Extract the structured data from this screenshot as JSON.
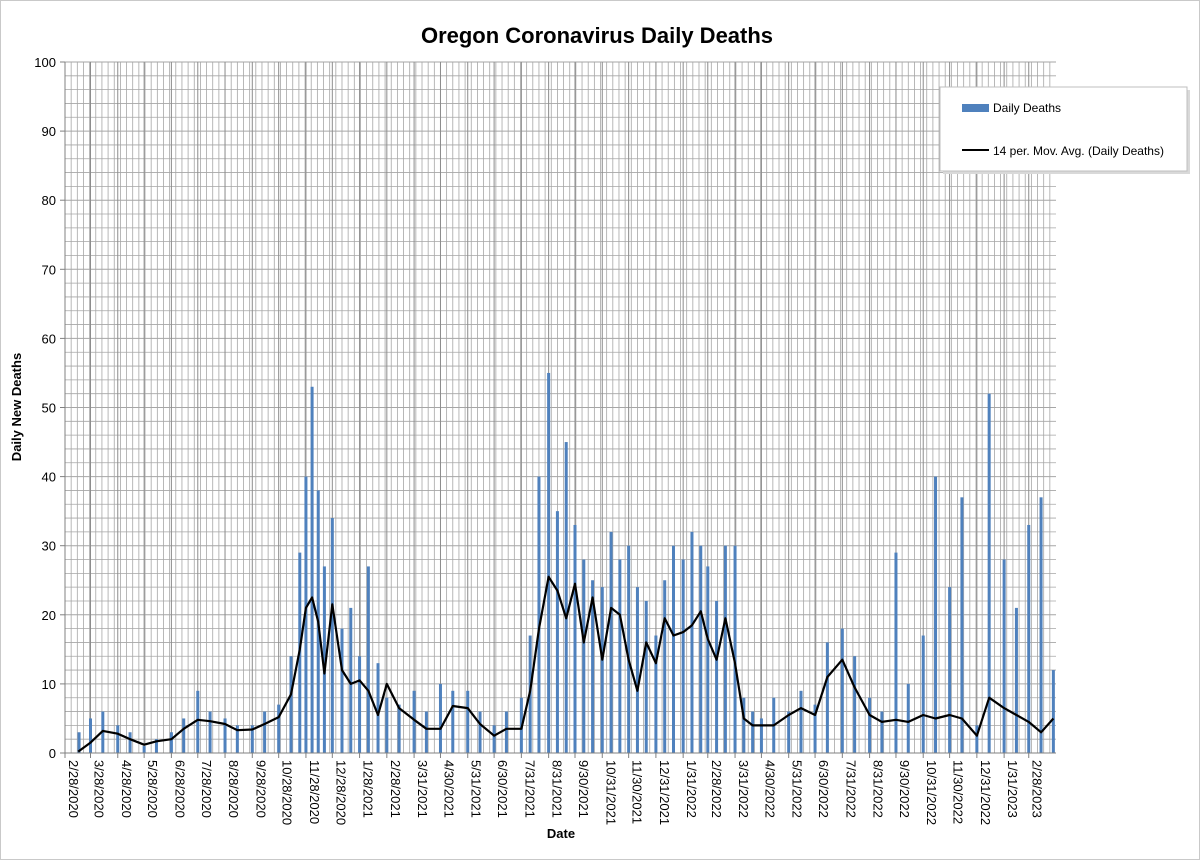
{
  "chart_data": {
    "type": "bar",
    "title": "Oregon Coronavirus Daily Deaths",
    "xlabel": "Date",
    "ylabel": "Daily New Deaths",
    "ylim": [
      0,
      100
    ],
    "yticks": [
      0,
      10,
      20,
      30,
      40,
      50,
      60,
      70,
      80,
      90,
      100
    ],
    "x_start": "2/28/2020",
    "x_end": "3/31/2023",
    "xtick_labels": [
      "2/28/2020",
      "3/28/2020",
      "4/28/2020",
      "5/28/2020",
      "6/28/2020",
      "7/28/2020",
      "8/28/2020",
      "9/28/2020",
      "10/28/2020",
      "11/28/2020",
      "12/28/2020",
      "1/28/2021",
      "2/28/2021",
      "3/31/2021",
      "4/30/2021",
      "5/31/2021",
      "6/30/2021",
      "7/31/2021",
      "8/31/2021",
      "9/30/2021",
      "10/31/2021",
      "11/30/2021",
      "12/31/2021",
      "1/31/2022",
      "2/28/2022",
      "3/31/2022",
      "4/30/2022",
      "5/31/2022",
      "6/30/2022",
      "7/31/2022",
      "8/31/2022",
      "9/30/2022",
      "10/31/2022",
      "11/30/2022",
      "12/31/2022",
      "1/31/2023",
      "2/28/2023"
    ],
    "grid": true,
    "legend_position": "top-right",
    "colors": {
      "bars": "#4f81bd",
      "moving_average": "#000000",
      "grid": "#a6a6a6"
    },
    "series": [
      {
        "name": "Daily Deaths",
        "type": "bar",
        "x": [
          "3/1/2020",
          "3/15/2020",
          "3/28/2020",
          "4/11/2020",
          "4/28/2020",
          "5/12/2020",
          "5/28/2020",
          "6/11/2020",
          "6/28/2020",
          "7/12/2020",
          "7/28/2020",
          "8/11/2020",
          "8/28/2020",
          "9/11/2020",
          "9/28/2020",
          "10/12/2020",
          "10/28/2020",
          "11/11/2020",
          "11/21/2020",
          "11/28/2020",
          "12/5/2020",
          "12/12/2020",
          "12/19/2020",
          "12/28/2020",
          "1/8/2021",
          "1/18/2021",
          "1/28/2021",
          "2/7/2021",
          "2/18/2021",
          "2/28/2021",
          "3/14/2021",
          "3/31/2021",
          "4/14/2021",
          "4/30/2021",
          "5/14/2021",
          "5/31/2021",
          "6/14/2021",
          "6/30/2021",
          "7/14/2021",
          "7/31/2021",
          "8/10/2021",
          "8/20/2021",
          "8/31/2021",
          "9/10/2021",
          "9/20/2021",
          "9/30/2021",
          "10/10/2021",
          "10/20/2021",
          "10/31/2021",
          "11/10/2021",
          "11/20/2021",
          "11/30/2021",
          "12/10/2021",
          "12/20/2021",
          "12/31/2021",
          "1/10/2022",
          "1/20/2022",
          "1/31/2022",
          "2/10/2022",
          "2/20/2022",
          "2/28/2022",
          "3/10/2022",
          "3/20/2022",
          "3/31/2022",
          "4/10/2022",
          "4/20/2022",
          "4/30/2022",
          "5/14/2022",
          "5/31/2022",
          "6/14/2022",
          "6/30/2022",
          "7/14/2022",
          "7/31/2022",
          "8/14/2022",
          "8/31/2022",
          "9/14/2022",
          "9/30/2022",
          "10/14/2022",
          "10/31/2022",
          "11/14/2022",
          "11/30/2022",
          "12/14/2022",
          "12/31/2022",
          "1/14/2023",
          "1/31/2023",
          "2/14/2023",
          "2/28/2023",
          "3/14/2023",
          "3/28/2023"
        ],
        "values": [
          0,
          3,
          5,
          6,
          4,
          3,
          1,
          2,
          3,
          5,
          9,
          6,
          5,
          4,
          4,
          6,
          7,
          14,
          29,
          40,
          53,
          38,
          27,
          34,
          18,
          21,
          14,
          27,
          13,
          8,
          7,
          9,
          6,
          10,
          9,
          9,
          6,
          4,
          6,
          8,
          17,
          40,
          55,
          35,
          45,
          33,
          28,
          25,
          24,
          32,
          28,
          30,
          24,
          22,
          17,
          25,
          30,
          28,
          32,
          30,
          27,
          22,
          30,
          30,
          8,
          6,
          5,
          8,
          6,
          9,
          7,
          16,
          18,
          14,
          8,
          6,
          29,
          10,
          17,
          40,
          24,
          37,
          4,
          52,
          28,
          21,
          33,
          37,
          12
        ]
      },
      {
        "name": "14 per. Mov. Avg. (Daily Deaths)",
        "type": "line",
        "x": [
          "3/14/2020",
          "3/28/2020",
          "4/11/2020",
          "4/28/2020",
          "5/12/2020",
          "5/28/2020",
          "6/11/2020",
          "6/28/2020",
          "7/12/2020",
          "7/28/2020",
          "8/11/2020",
          "8/28/2020",
          "9/11/2020",
          "9/28/2020",
          "10/12/2020",
          "10/28/2020",
          "11/11/2020",
          "11/21/2020",
          "11/28/2020",
          "12/5/2020",
          "12/12/2020",
          "12/19/2020",
          "12/28/2020",
          "1/8/2021",
          "1/18/2021",
          "1/28/2021",
          "2/7/2021",
          "2/18/2021",
          "2/28/2021",
          "3/14/2021",
          "3/31/2021",
          "4/14/2021",
          "4/30/2021",
          "5/14/2021",
          "5/31/2021",
          "6/14/2021",
          "6/30/2021",
          "7/14/2021",
          "7/31/2021",
          "8/10/2021",
          "8/20/2021",
          "8/31/2021",
          "9/10/2021",
          "9/20/2021",
          "9/30/2021",
          "10/10/2021",
          "10/20/2021",
          "10/31/2021",
          "11/10/2021",
          "11/20/2021",
          "11/30/2021",
          "12/10/2021",
          "12/20/2021",
          "12/31/2021",
          "1/10/2022",
          "1/20/2022",
          "1/31/2022",
          "2/10/2022",
          "2/20/2022",
          "2/28/2022",
          "3/10/2022",
          "3/20/2022",
          "3/31/2022",
          "4/10/2022",
          "4/20/2022",
          "4/30/2022",
          "5/14/2022",
          "5/31/2022",
          "6/14/2022",
          "6/30/2022",
          "7/14/2022",
          "7/31/2022",
          "8/14/2022",
          "8/31/2022",
          "9/14/2022",
          "9/30/2022",
          "10/14/2022",
          "10/31/2022",
          "11/14/2022",
          "11/30/2022",
          "12/14/2022",
          "12/31/2022",
          "1/14/2023",
          "1/31/2023",
          "2/14/2023",
          "2/28/2023",
          "3/14/2023",
          "3/28/2023"
        ],
        "values": [
          0.2,
          1.5,
          3.2,
          2.8,
          2,
          1.2,
          1.7,
          2,
          3.5,
          4.8,
          4.6,
          4.2,
          3.3,
          3.4,
          4.2,
          5.2,
          8.5,
          15,
          21,
          22.5,
          19,
          11.5,
          21.5,
          12,
          10,
          10.5,
          9,
          5.5,
          10,
          6.5,
          4.8,
          3.5,
          3.5,
          6.8,
          6.5,
          4.2,
          2.5,
          3.5,
          3.5,
          9,
          18,
          25.5,
          23.5,
          19.5,
          24.5,
          16,
          22.5,
          13.5,
          21,
          20,
          13.5,
          9,
          16,
          13,
          19.5,
          17,
          17.5,
          18.5,
          20.5,
          16.5,
          13.5,
          19.5,
          13,
          5,
          4,
          4,
          4,
          5.5,
          6.5,
          5.5,
          11,
          13.5,
          9.5,
          5.5,
          4.5,
          4.8,
          4.5,
          5.5,
          5,
          5.5,
          5,
          2.5,
          8,
          6.5,
          5.5,
          4.5,
          3,
          5
        ]
      }
    ]
  }
}
